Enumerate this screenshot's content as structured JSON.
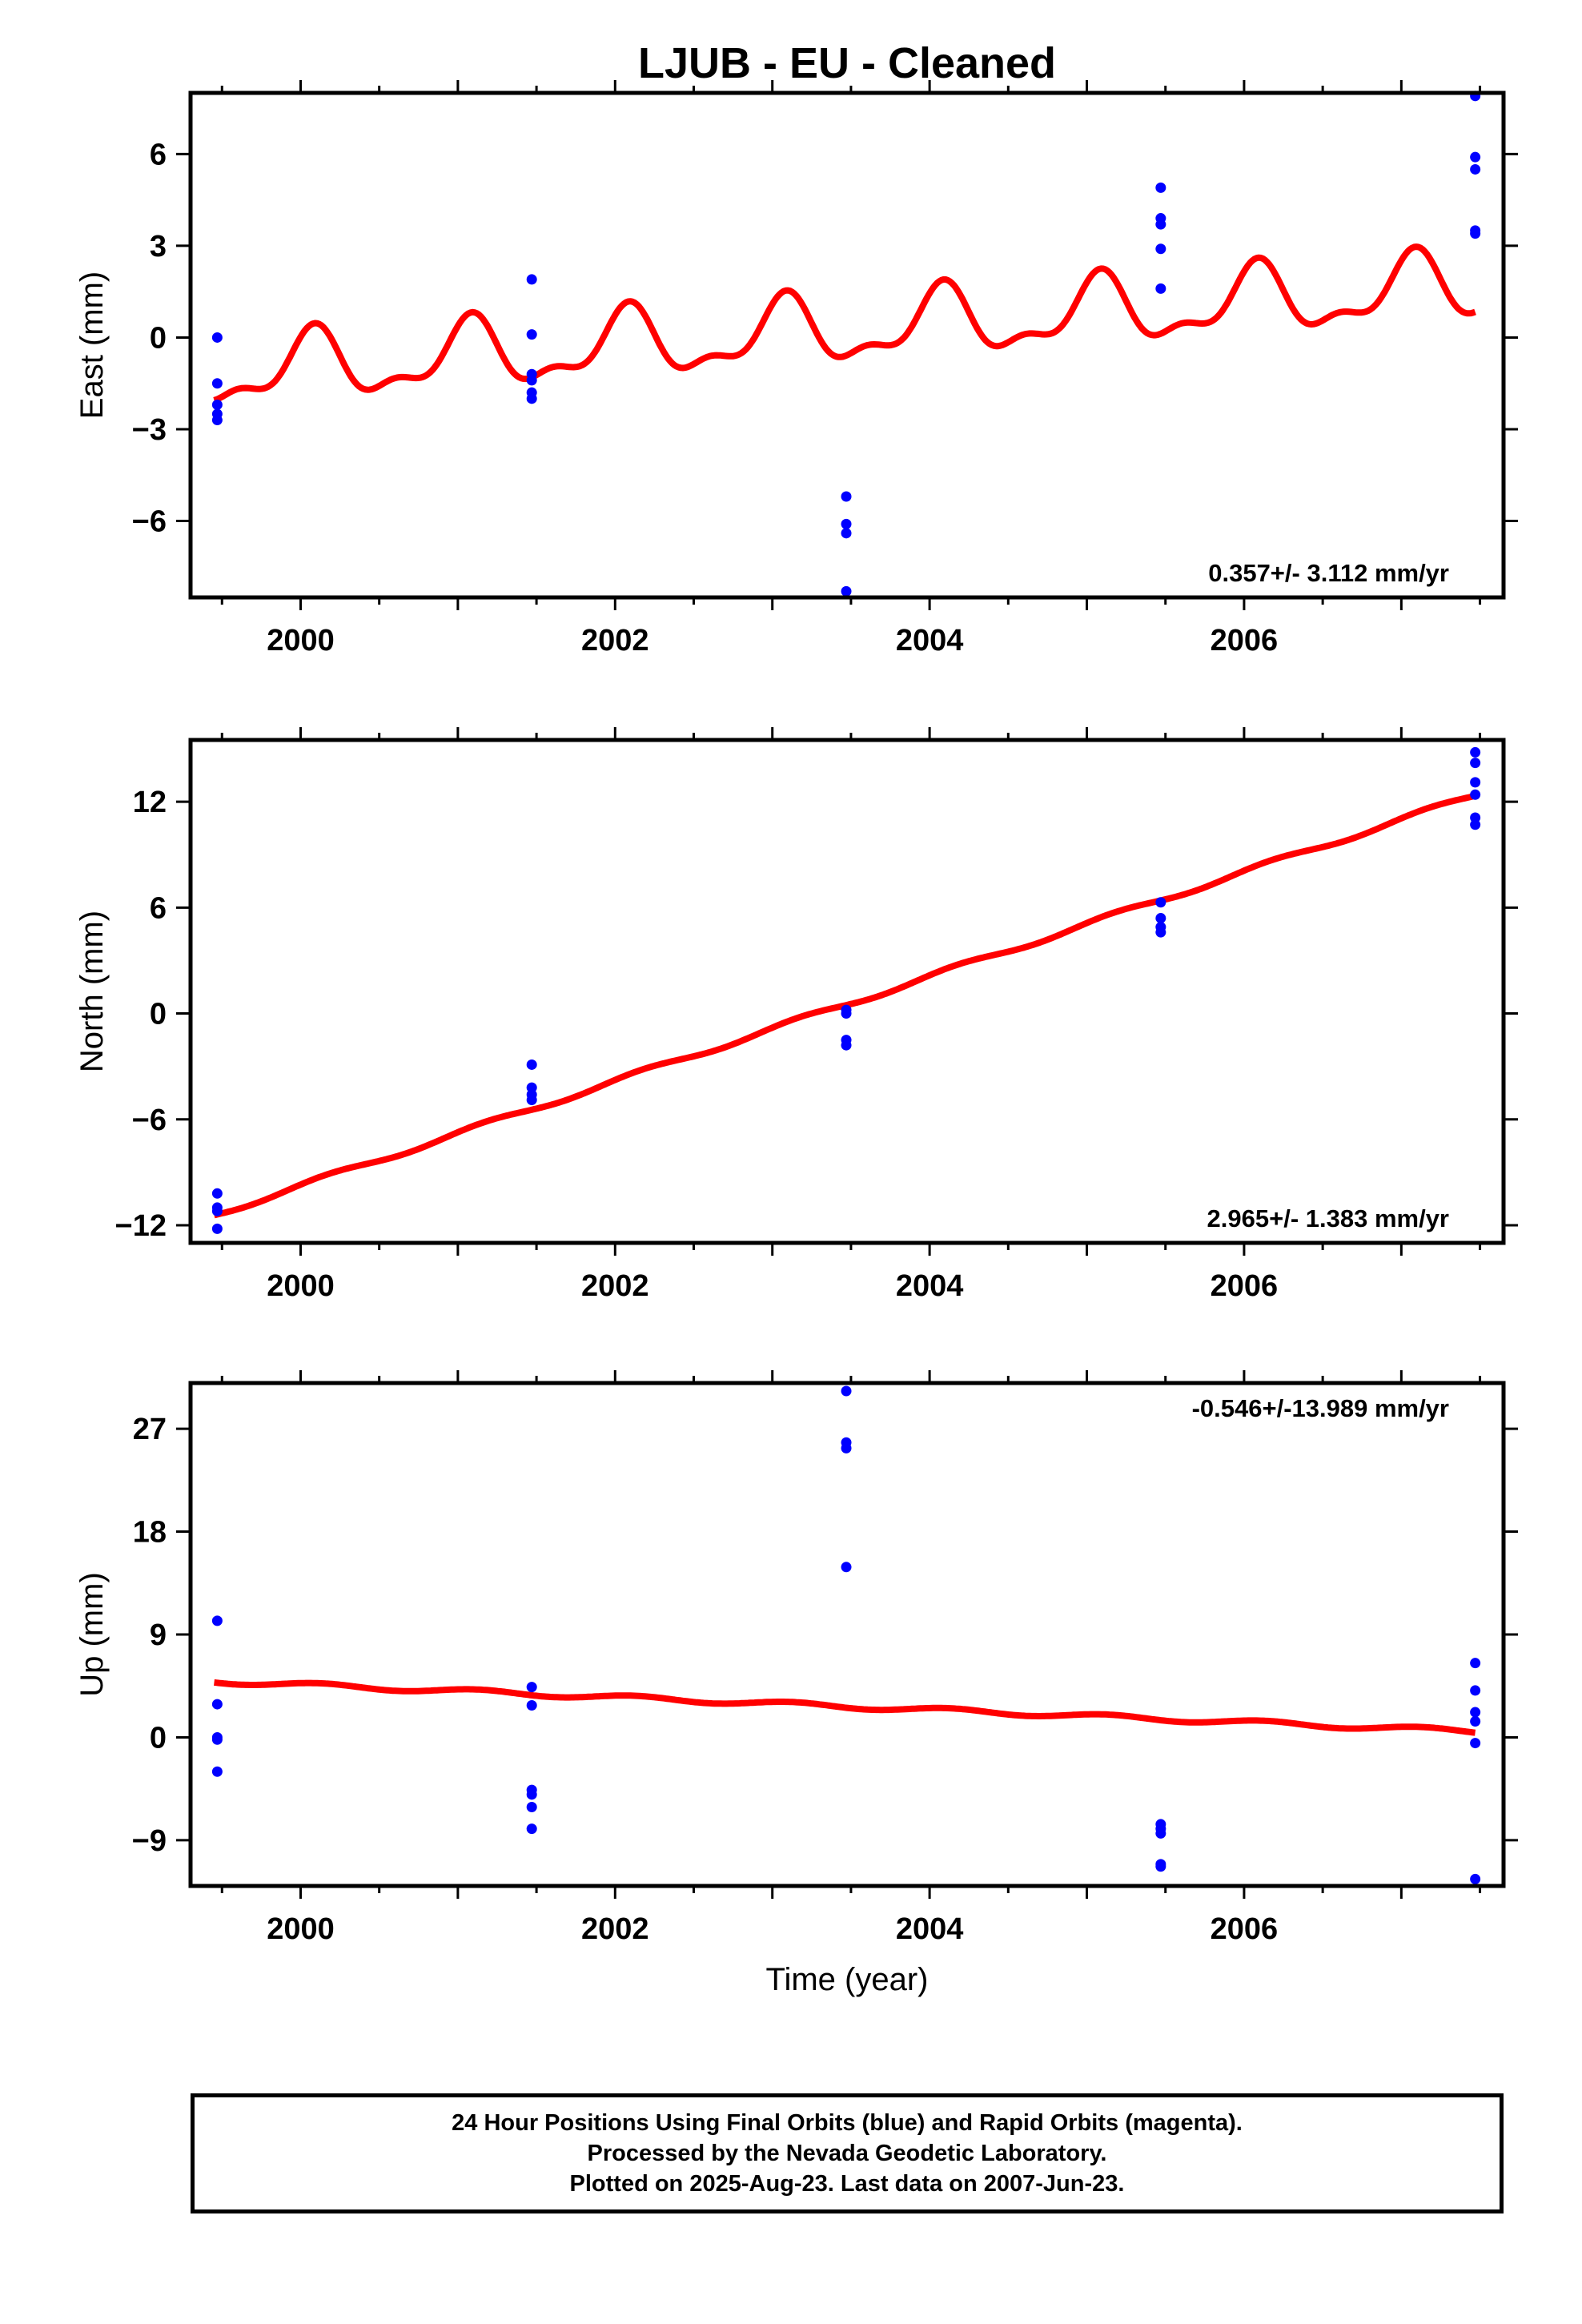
{
  "title": "LJUB  - EU - Cleaned",
  "xlabel": "Time (year)",
  "footer": {
    "line1": "24 Hour Positions Using Final Orbits (blue) and Rapid Orbits (magenta).",
    "line2": "Processed by the Nevada Geodetic Laboratory.",
    "line3": "Plotted on 2025-Aug-23. Last data on 2007-Jun-23."
  },
  "colors": {
    "points": "#0000ff",
    "fit": "#ff0000",
    "frame": "#000000"
  },
  "chart_data": [
    {
      "type": "scatter",
      "name": "east",
      "ylabel": "East (mm)",
      "xlim": [
        1999.3,
        2007.65
      ],
      "ylim": [
        -8.5,
        8.0
      ],
      "xticks": [
        2000,
        2002,
        2004,
        2006
      ],
      "yticks": [
        -6,
        -3,
        0,
        3,
        6
      ],
      "yticklabels": [
        "−6",
        "−3",
        "0",
        "3",
        "6"
      ],
      "rate_label": "0.357+/- 3.112 mm/yr",
      "rate_position": "bottom-right",
      "points": [
        [
          1999.47,
          -2.7
        ],
        [
          1999.47,
          -2.5
        ],
        [
          1999.47,
          -2.2
        ],
        [
          1999.47,
          -1.5
        ],
        [
          1999.47,
          0.0
        ],
        [
          2001.47,
          1.9
        ],
        [
          2001.47,
          0.1
        ],
        [
          2001.47,
          -1.2
        ],
        [
          2001.47,
          -1.4
        ],
        [
          2001.47,
          -1.8
        ],
        [
          2001.47,
          -2.0
        ],
        [
          2003.47,
          -5.2
        ],
        [
          2003.47,
          -6.1
        ],
        [
          2003.47,
          -6.4
        ],
        [
          2003.47,
          -8.3
        ],
        [
          2005.47,
          4.9
        ],
        [
          2005.47,
          3.9
        ],
        [
          2005.47,
          3.7
        ],
        [
          2005.47,
          2.9
        ],
        [
          2005.47,
          1.6
        ],
        [
          2007.47,
          7.9
        ],
        [
          2007.47,
          5.9
        ],
        [
          2007.47,
          5.5
        ],
        [
          2007.47,
          3.5
        ],
        [
          2007.47,
          3.4
        ]
      ],
      "fit": {
        "x_start": 1999.45,
        "x_end": 2007.47,
        "t0": 1999.45,
        "y0": -1.2,
        "rate": 0.357,
        "annual_amp": 1.0,
        "annual_phase": 1.1,
        "semiannual_amp": 0.45,
        "semiannual_phase": 0.3
      }
    },
    {
      "type": "scatter",
      "name": "north",
      "ylabel": "North (mm)",
      "xlim": [
        1999.3,
        2007.65
      ],
      "ylim": [
        -13.0,
        15.5
      ],
      "xticks": [
        2000,
        2002,
        2004,
        2006
      ],
      "yticks": [
        -12,
        -6,
        0,
        6,
        12
      ],
      "yticklabels": [
        "−12",
        "−6",
        "0",
        "6",
        "12"
      ],
      "rate_label": "2.965+/- 1.383 mm/yr",
      "rate_position": "bottom-right",
      "points": [
        [
          1999.47,
          -10.2
        ],
        [
          1999.47,
          -11.0
        ],
        [
          1999.47,
          -11.2
        ],
        [
          1999.47,
          -12.2
        ],
        [
          2001.47,
          -2.9
        ],
        [
          2001.47,
          -4.2
        ],
        [
          2001.47,
          -4.6
        ],
        [
          2001.47,
          -4.9
        ],
        [
          2003.47,
          0.2
        ],
        [
          2003.47,
          0.0
        ],
        [
          2003.47,
          -1.5
        ],
        [
          2003.47,
          -1.8
        ],
        [
          2005.47,
          6.3
        ],
        [
          2005.47,
          5.4
        ],
        [
          2005.47,
          4.9
        ],
        [
          2005.47,
          4.6
        ],
        [
          2007.47,
          14.8
        ],
        [
          2007.47,
          14.2
        ],
        [
          2007.47,
          13.1
        ],
        [
          2007.47,
          12.4
        ],
        [
          2007.47,
          11.1
        ],
        [
          2007.47,
          10.7
        ]
      ],
      "fit": {
        "x_start": 1999.45,
        "x_end": 2007.47,
        "t0": 1999.45,
        "y0": -11.4,
        "rate": 2.965,
        "annual_amp": 0.15,
        "annual_phase": 0.5,
        "semiannual_amp": 0.0,
        "semiannual_phase": 0.0
      }
    },
    {
      "type": "scatter",
      "name": "up",
      "ylabel": "Up (mm)",
      "xlim": [
        1999.3,
        2007.65
      ],
      "ylim": [
        -13.0,
        31.0
      ],
      "xticks": [
        2000,
        2002,
        2004,
        2006
      ],
      "yticks": [
        -9,
        0,
        9,
        18,
        27
      ],
      "yticklabels": [
        "−9",
        "0",
        "9",
        "18",
        "27"
      ],
      "rate_label": "-0.546+/-13.989 mm/yr",
      "rate_position": "top-right",
      "points": [
        [
          1999.47,
          10.2
        ],
        [
          1999.47,
          2.9
        ],
        [
          1999.47,
          0.0
        ],
        [
          1999.47,
          -0.2
        ],
        [
          1999.47,
          -3.0
        ],
        [
          2001.47,
          4.4
        ],
        [
          2001.47,
          2.8
        ],
        [
          2001.47,
          -4.6
        ],
        [
          2001.47,
          -5.0
        ],
        [
          2001.47,
          -6.1
        ],
        [
          2001.47,
          -8.0
        ],
        [
          2003.47,
          30.3
        ],
        [
          2003.47,
          25.8
        ],
        [
          2003.47,
          25.3
        ],
        [
          2003.47,
          14.9
        ],
        [
          2005.47,
          -7.6
        ],
        [
          2005.47,
          -8.0
        ],
        [
          2005.47,
          -8.4
        ],
        [
          2005.47,
          -11.1
        ],
        [
          2005.47,
          -11.3
        ],
        [
          2007.47,
          6.5
        ],
        [
          2007.47,
          4.1
        ],
        [
          2007.47,
          2.2
        ],
        [
          2007.47,
          1.4
        ],
        [
          2007.47,
          -0.5
        ],
        [
          2007.47,
          -12.4
        ]
      ],
      "fit": {
        "x_start": 1999.45,
        "x_end": 2007.47,
        "t0": 1999.45,
        "y0": 4.9,
        "rate": -0.546,
        "annual_amp": 0.2,
        "annual_phase": 0.8,
        "semiannual_amp": 0.0,
        "semiannual_phase": 0.0
      }
    }
  ]
}
